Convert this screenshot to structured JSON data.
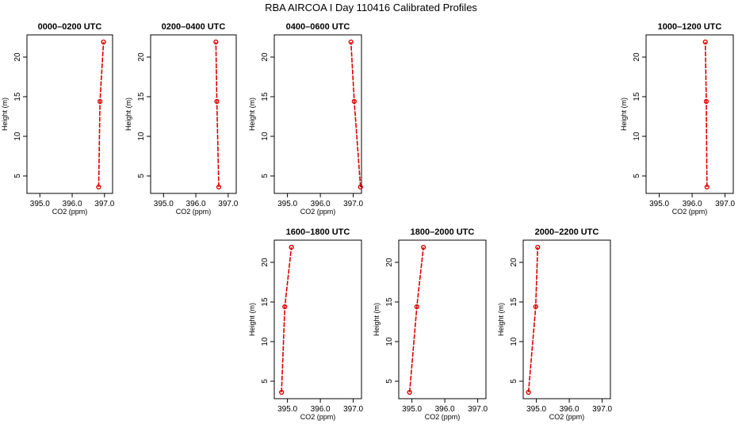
{
  "title": "RBA AIRCOA I  Day 110416  Calibrated Profiles",
  "colors": {
    "series": "#dd0000",
    "axis": "#000000"
  },
  "chart_data": [
    {
      "type": "line",
      "title": "0000–0200 UTC",
      "xlabel": "CO2 (ppm)",
      "ylabel": "Height (m)",
      "xlim": [
        394.6,
        397.25
      ],
      "ylim": [
        2.8,
        22.8
      ],
      "xticks": [
        "395.0",
        "396.0",
        "397.0"
      ],
      "yticks": [
        "5",
        "10",
        "15",
        "20"
      ],
      "series": [
        {
          "points": [
            {
              "x": 396.82,
              "y": 3.6
            },
            {
              "x": 396.86,
              "y": 14.4
            },
            {
              "x": 396.97,
              "y": 21.9
            }
          ]
        }
      ]
    },
    {
      "type": "line",
      "title": "0200–0400 UTC",
      "xlabel": "CO2 (ppm)",
      "ylabel": "Height (m)",
      "xlim": [
        394.6,
        397.25
      ],
      "ylim": [
        2.8,
        22.8
      ],
      "xticks": [
        "395.0",
        "396.0",
        "397.0"
      ],
      "yticks": [
        "5",
        "10",
        "15",
        "20"
      ],
      "series": [
        {
          "points": [
            {
              "x": 396.71,
              "y": 3.6
            },
            {
              "x": 396.65,
              "y": 14.4
            },
            {
              "x": 396.62,
              "y": 21.9
            }
          ]
        }
      ]
    },
    {
      "type": "line",
      "title": "0400–0600 UTC",
      "xlabel": "CO2 (ppm)",
      "ylabel": "Height (m)",
      "xlim": [
        394.6,
        397.25
      ],
      "ylim": [
        2.8,
        22.8
      ],
      "xticks": [
        "395.0",
        "396.0",
        "397.0"
      ],
      "yticks": [
        "5",
        "10",
        "15",
        "20"
      ],
      "series": [
        {
          "points": [
            {
              "x": 397.22,
              "y": 3.6
            },
            {
              "x": 397.03,
              "y": 14.4
            },
            {
              "x": 396.93,
              "y": 21.9
            }
          ]
        }
      ]
    },
    {
      "type": "line",
      "title": "1000–1200 UTC",
      "xlabel": "CO2 (ppm)",
      "ylabel": "Height (m)",
      "xlim": [
        394.6,
        397.25
      ],
      "ylim": [
        2.8,
        22.8
      ],
      "xticks": [
        "395.0",
        "396.0",
        "397.0"
      ],
      "yticks": [
        "5",
        "10",
        "15",
        "20"
      ],
      "series": [
        {
          "points": [
            {
              "x": 396.45,
              "y": 3.6
            },
            {
              "x": 396.43,
              "y": 14.4
            },
            {
              "x": 396.4,
              "y": 21.9
            }
          ]
        }
      ]
    },
    {
      "type": "line",
      "title": "1600–1800 UTC",
      "xlabel": "CO2 (ppm)",
      "ylabel": "Height (m)",
      "xlim": [
        394.6,
        397.25
      ],
      "ylim": [
        2.8,
        22.8
      ],
      "xticks": [
        "395.0",
        "396.0",
        "397.0"
      ],
      "yticks": [
        "5",
        "10",
        "15",
        "20"
      ],
      "series": [
        {
          "points": [
            {
              "x": 394.82,
              "y": 3.6
            },
            {
              "x": 394.92,
              "y": 14.4
            },
            {
              "x": 395.12,
              "y": 21.9
            }
          ]
        }
      ]
    },
    {
      "type": "line",
      "title": "1800–2000 UTC",
      "xlabel": "CO2 (ppm)",
      "ylabel": "Height (m)",
      "xlim": [
        394.6,
        397.25
      ],
      "ylim": [
        2.8,
        22.8
      ],
      "xticks": [
        "395.0",
        "396.0",
        "397.0"
      ],
      "yticks": [
        "5",
        "10",
        "15",
        "20"
      ],
      "series": [
        {
          "points": [
            {
              "x": 394.93,
              "y": 3.6
            },
            {
              "x": 395.15,
              "y": 14.4
            },
            {
              "x": 395.35,
              "y": 21.9
            }
          ]
        }
      ]
    },
    {
      "type": "line",
      "title": "2000–2200 UTC",
      "xlabel": "CO2 (ppm)",
      "ylabel": "Height (m)",
      "xlim": [
        394.6,
        397.25
      ],
      "ylim": [
        2.8,
        22.8
      ],
      "xticks": [
        "395.0",
        "396.0",
        "397.0"
      ],
      "yticks": [
        "5",
        "10",
        "15",
        "20"
      ],
      "series": [
        {
          "points": [
            {
              "x": 394.76,
              "y": 3.6
            },
            {
              "x": 394.98,
              "y": 14.4
            },
            {
              "x": 395.04,
              "y": 21.9
            }
          ]
        }
      ]
    }
  ]
}
